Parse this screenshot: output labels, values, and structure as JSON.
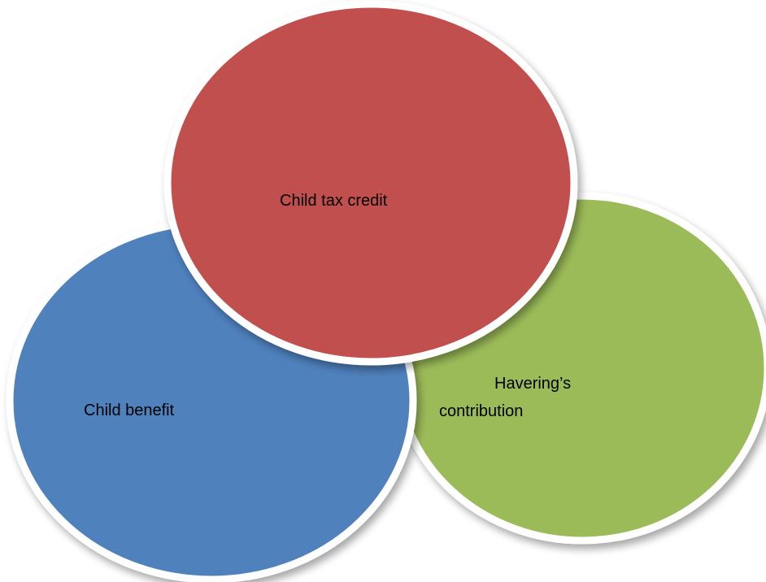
{
  "circles": [
    {
      "id": "child-benefit",
      "label": "Child benefit",
      "color": "#4f81bd"
    },
    {
      "id": "havering-contribution",
      "label_lines": [
        "Havering’s",
        "contribution"
      ],
      "color": "#9bbb59"
    },
    {
      "id": "child-tax-credit",
      "label": "Child tax credit",
      "color": "#c0504d"
    }
  ],
  "border_color": "#ffffff",
  "shadow_color": "#c8c8c8"
}
